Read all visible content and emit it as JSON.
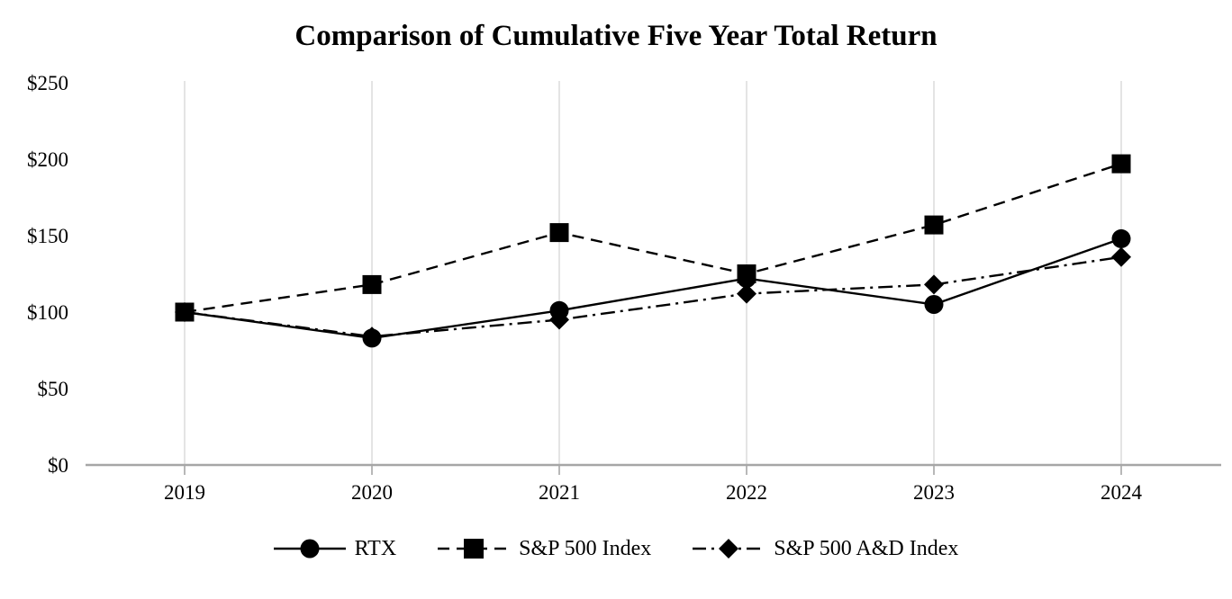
{
  "title": "Comparison of Cumulative Five Year Total Return",
  "chart_data": {
    "type": "line",
    "categories": [
      "2019",
      "2020",
      "2021",
      "2022",
      "2023",
      "2024"
    ],
    "series": [
      {
        "name": "RTX",
        "marker": "circle",
        "line": "solid",
        "values": [
          100,
          83,
          101,
          122,
          105,
          148
        ]
      },
      {
        "name": "S&P 500 Index",
        "marker": "square",
        "line": "dashed",
        "values": [
          100,
          118,
          152,
          125,
          157,
          197
        ]
      },
      {
        "name": "S&P 500 A&D Index",
        "marker": "diamond",
        "line": "dashdot",
        "values": [
          100,
          84,
          95,
          112,
          118,
          136
        ]
      }
    ],
    "y_ticks": [
      {
        "label": "$0",
        "value": 0
      },
      {
        "label": "$50",
        "value": 50
      },
      {
        "label": "$100",
        "value": 100
      },
      {
        "label": "$150",
        "value": 150
      },
      {
        "label": "$200",
        "value": 200
      },
      {
        "label": "$250",
        "value": 250
      }
    ],
    "ylim": [
      0,
      250
    ],
    "xlabel": "",
    "ylabel": "",
    "grid": "vertical-only",
    "legend_position": "bottom",
    "colors": {
      "series": "#000000",
      "gridline": "#d9d9d9",
      "axis": "#a6a6a6"
    }
  },
  "legend": {
    "items": [
      {
        "label": "RTX"
      },
      {
        "label": "S&P 500 Index"
      },
      {
        "label": "S&P 500 A&D Index"
      }
    ]
  }
}
